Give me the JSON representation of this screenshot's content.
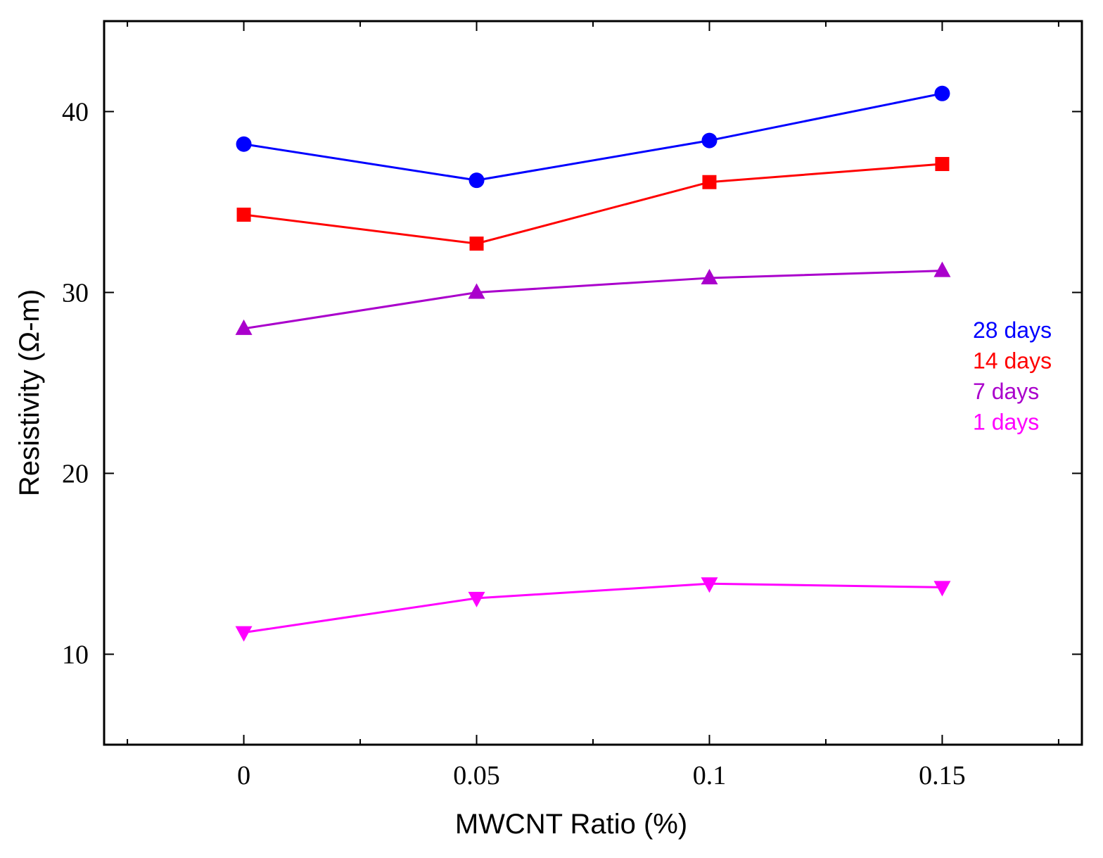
{
  "chart_data": {
    "type": "line",
    "title": "",
    "xlabel": "MWCNT Ratio (%)",
    "ylabel": "Resistivity (Ω-m)",
    "x": [
      0,
      0.05,
      0.1,
      0.15
    ],
    "x_tick_labels": [
      "0",
      "0.05",
      "0.1",
      "0.15"
    ],
    "y_tick_labels": [
      "10",
      "20",
      "30",
      "40"
    ],
    "xlim": [
      -0.03,
      0.18
    ],
    "ylim": [
      5,
      45
    ],
    "grid": false,
    "legend_position": "right",
    "series": [
      {
        "name": "28 days",
        "marker": "circle",
        "color": "#0000ff",
        "values": [
          38.2,
          36.2,
          38.4,
          41.0
        ]
      },
      {
        "name": "14 days",
        "marker": "square",
        "color": "#ff0000",
        "values": [
          34.3,
          32.7,
          36.1,
          37.1
        ]
      },
      {
        "name": "7 days",
        "marker": "triangle-up",
        "color": "#aa00cc",
        "values": [
          28.0,
          30.0,
          30.8,
          31.2
        ]
      },
      {
        "name": "1 days",
        "marker": "triangle-down",
        "color": "#ff00ff",
        "values": [
          11.2,
          13.1,
          13.9,
          13.7
        ]
      }
    ]
  }
}
